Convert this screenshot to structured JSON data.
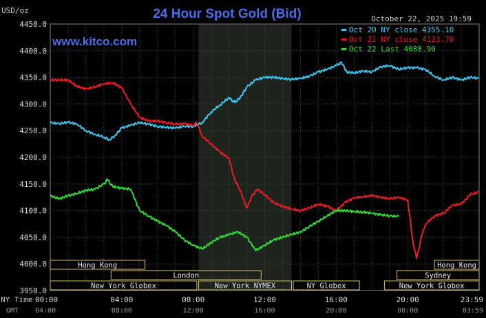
{
  "chart_data": {
    "type": "line",
    "title": "24 Hour Spot Gold (Bid)",
    "ylabel": "USD/oz",
    "watermark": "www.kitco.com",
    "timestamp": "October 22, 2025 19:59",
    "ylim": [
      3950,
      4450
    ],
    "y_ticks": [
      "4450.0",
      "4400.0",
      "4350.0",
      "4300.0",
      "4250.0",
      "4200.0",
      "4150.0",
      "4100.0",
      "4050.0",
      "4000.0",
      "3950.0"
    ],
    "y_tick_values": [
      4450,
      4400,
      4350,
      4300,
      4250,
      4200,
      4150,
      4100,
      4050,
      4000,
      3950
    ],
    "x_axis_label_ny": "NY Time",
    "x_axis_label_gmt": "GMT",
    "x_ticks_ny": [
      "00:00",
      "04:00",
      "08:00",
      "12:00",
      "16:00",
      "20:00",
      "23:59"
    ],
    "x_ticks_gmt": [
      "04:00",
      "08:00",
      "12:00",
      "16:00",
      "20:00",
      "00:00",
      "03:59"
    ],
    "x_tick_hours": [
      0,
      4,
      8,
      12,
      16,
      20,
      24
    ],
    "highlight_hours": [
      8.3,
      13.5
    ],
    "sessions": [
      {
        "label": "Hong Kong",
        "start": 0,
        "end": 5.3,
        "row": 0
      },
      {
        "label": "London",
        "start": 3.4,
        "end": 11.8,
        "row": 1
      },
      {
        "label": "New York Globex",
        "start": 0,
        "end": 8.2,
        "row": 2
      },
      {
        "label": "New York NYMEX",
        "start": 8.3,
        "end": 13.5,
        "row": 2
      },
      {
        "label": "NY Globex",
        "start": 13.6,
        "end": 17.3,
        "row": 2
      },
      {
        "label": "Sydney",
        "start": 19.4,
        "end": 24,
        "row": 1
      },
      {
        "label": "Hong Kong",
        "start": 21.5,
        "end": 24,
        "row": 0
      },
      {
        "label": "New York Globex",
        "start": 18.7,
        "end": 24,
        "row": 2
      }
    ],
    "series": [
      {
        "name": "Oct 20 NY close 4355.10",
        "color": "#3fc8f2",
        "points": [
          [
            0,
            4265
          ],
          [
            0.5,
            4263
          ],
          [
            1,
            4266
          ],
          [
            1.5,
            4262
          ],
          [
            2,
            4250
          ],
          [
            2.5,
            4243
          ],
          [
            3,
            4238
          ],
          [
            3.3,
            4233
          ],
          [
            3.6,
            4240
          ],
          [
            4,
            4255
          ],
          [
            4.5,
            4260
          ],
          [
            5,
            4265
          ],
          [
            5.5,
            4262
          ],
          [
            6,
            4258
          ],
          [
            6.5,
            4256
          ],
          [
            7,
            4255
          ],
          [
            7.5,
            4258
          ],
          [
            8,
            4258
          ],
          [
            8.5,
            4265
          ],
          [
            9,
            4285
          ],
          [
            9.5,
            4298
          ],
          [
            10,
            4312
          ],
          [
            10.3,
            4303
          ],
          [
            10.6,
            4310
          ],
          [
            11,
            4332
          ],
          [
            11.5,
            4345
          ],
          [
            12,
            4350
          ],
          [
            12.5,
            4350
          ],
          [
            13,
            4348
          ],
          [
            13.5,
            4346
          ],
          [
            14,
            4348
          ],
          [
            14.5,
            4352
          ],
          [
            15,
            4360
          ],
          [
            15.5,
            4365
          ],
          [
            16,
            4372
          ],
          [
            16.3,
            4378
          ],
          [
            16.6,
            4360
          ],
          [
            17,
            4358
          ],
          [
            17.5,
            4362
          ],
          [
            18,
            4360
          ],
          [
            18.5,
            4370
          ],
          [
            19,
            4372
          ],
          [
            19.5,
            4365
          ],
          [
            20,
            4368
          ],
          [
            20.5,
            4368
          ],
          [
            21,
            4365
          ],
          [
            21.5,
            4352
          ],
          [
            22,
            4345
          ],
          [
            22.5,
            4350
          ],
          [
            23,
            4345
          ],
          [
            23.5,
            4350
          ],
          [
            24,
            4348
          ]
        ]
      },
      {
        "name": "Oct 21 NY close 4123.70",
        "color": "#ee1c24",
        "points": [
          [
            0,
            4345
          ],
          [
            0.5,
            4345
          ],
          [
            1,
            4345
          ],
          [
            1.5,
            4333
          ],
          [
            2,
            4328
          ],
          [
            2.5,
            4332
          ],
          [
            3,
            4338
          ],
          [
            3.5,
            4340
          ],
          [
            4,
            4330
          ],
          [
            4.5,
            4300
          ],
          [
            5,
            4275
          ],
          [
            5.5,
            4268
          ],
          [
            6,
            4268
          ],
          [
            6.5,
            4265
          ],
          [
            7,
            4262
          ],
          [
            7.5,
            4263
          ],
          [
            8,
            4260
          ],
          [
            8.2,
            4265
          ],
          [
            8.5,
            4240
          ],
          [
            9,
            4225
          ],
          [
            9.5,
            4210
          ],
          [
            10,
            4198
          ],
          [
            10.3,
            4160
          ],
          [
            10.6,
            4140
          ],
          [
            11,
            4105
          ],
          [
            11.3,
            4128
          ],
          [
            11.6,
            4140
          ],
          [
            12,
            4130
          ],
          [
            12.5,
            4115
          ],
          [
            13,
            4108
          ],
          [
            13.5,
            4103
          ],
          [
            14,
            4100
          ],
          [
            14.5,
            4105
          ],
          [
            15,
            4112
          ],
          [
            15.5,
            4108
          ],
          [
            16,
            4100
          ],
          [
            16.5,
            4115
          ],
          [
            17,
            4124
          ],
          [
            17.5,
            4126
          ],
          [
            18,
            4128
          ],
          [
            18.5,
            4125
          ],
          [
            19,
            4122
          ],
          [
            19.5,
            4125
          ],
          [
            20,
            4120
          ],
          [
            20.3,
            4040
          ],
          [
            20.5,
            4010
          ],
          [
            20.8,
            4055
          ],
          [
            21,
            4075
          ],
          [
            21.5,
            4090
          ],
          [
            22,
            4095
          ],
          [
            22.5,
            4110
          ],
          [
            23,
            4112
          ],
          [
            23.5,
            4130
          ],
          [
            24,
            4135
          ]
        ]
      },
      {
        "name": "Oct 22 Last 4088.90",
        "color": "#33dd33",
        "points": [
          [
            0,
            4128
          ],
          [
            0.5,
            4122
          ],
          [
            1,
            4128
          ],
          [
            1.5,
            4132
          ],
          [
            2,
            4138
          ],
          [
            2.5,
            4140
          ],
          [
            3,
            4150
          ],
          [
            3.2,
            4158
          ],
          [
            3.5,
            4145
          ],
          [
            4,
            4142
          ],
          [
            4.5,
            4140
          ],
          [
            5,
            4100
          ],
          [
            5.5,
            4090
          ],
          [
            6,
            4080
          ],
          [
            6.5,
            4072
          ],
          [
            7,
            4060
          ],
          [
            7.5,
            4045
          ],
          [
            8,
            4035
          ],
          [
            8.5,
            4028
          ],
          [
            9,
            4040
          ],
          [
            9.5,
            4050
          ],
          [
            10,
            4055
          ],
          [
            10.5,
            4060
          ],
          [
            11,
            4050
          ],
          [
            11.5,
            4025
          ],
          [
            12,
            4035
          ],
          [
            12.5,
            4045
          ],
          [
            13,
            4050
          ],
          [
            13.5,
            4055
          ],
          [
            14,
            4060
          ],
          [
            14.5,
            4070
          ],
          [
            15,
            4080
          ],
          [
            15.5,
            4090
          ],
          [
            16,
            4100
          ],
          [
            16.5,
            4100
          ],
          [
            17,
            4098
          ],
          [
            17.5,
            4097
          ],
          [
            18,
            4095
          ],
          [
            18.5,
            4092
          ],
          [
            19,
            4090
          ],
          [
            19.5,
            4089
          ]
        ]
      }
    ]
  }
}
